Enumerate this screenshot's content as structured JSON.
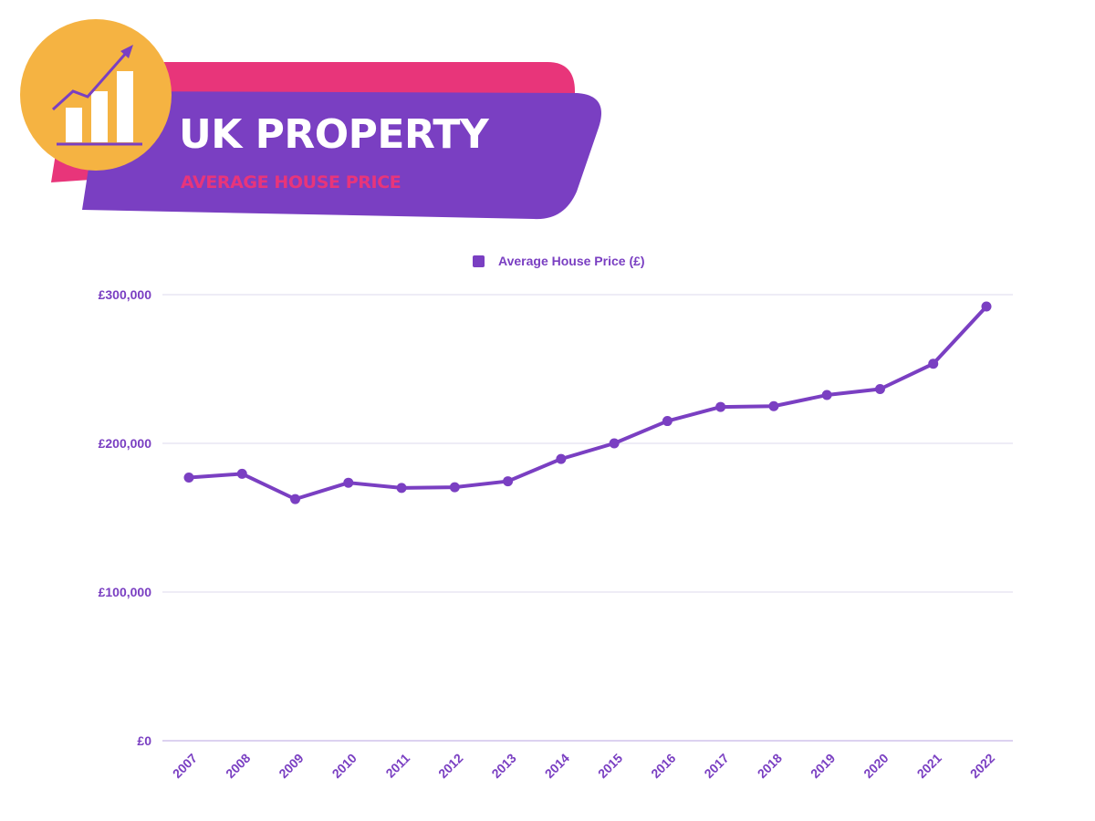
{
  "header": {
    "title": "UK PROPERTY",
    "subtitle": "AVERAGE HOUSE PRICE",
    "icon": "growth-chart-icon"
  },
  "colors": {
    "accent": "#7a3fc2",
    "pink": "#e8357a",
    "badge": "#f5b342",
    "grid": "#ddd8ec"
  },
  "chart_data": {
    "type": "line",
    "legend": "top-center",
    "grid": true,
    "ylim": [
      0,
      300000
    ],
    "yticks": [
      0,
      100000,
      200000,
      300000
    ],
    "ytick_labels": [
      "£0",
      "£100,000",
      "£200,000",
      "£300,000"
    ],
    "categories": [
      "2007",
      "2008",
      "2009",
      "2010",
      "2011",
      "2012",
      "2013",
      "2014",
      "2015",
      "2016",
      "2017",
      "2018",
      "2019",
      "2020",
      "2021",
      "2022"
    ],
    "series": [
      {
        "name": "Average House Price (£)",
        "values": [
          177000,
          179500,
          162500,
          173500,
          170000,
          170500,
          174500,
          189500,
          200000,
          215000,
          224500,
          225000,
          232500,
          236500,
          253500,
          292000
        ]
      }
    ]
  }
}
